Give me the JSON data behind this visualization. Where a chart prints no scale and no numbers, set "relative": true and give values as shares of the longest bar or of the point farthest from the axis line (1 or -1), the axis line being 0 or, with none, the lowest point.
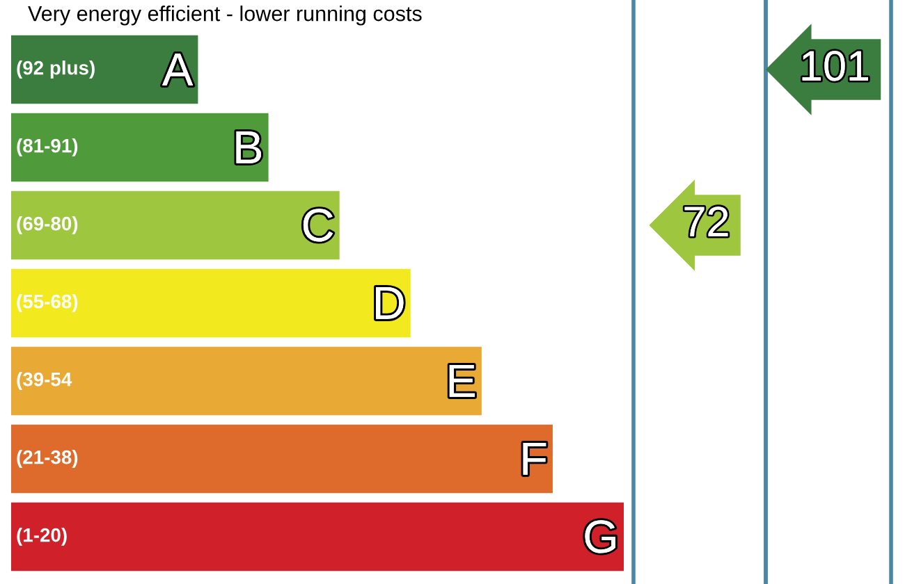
{
  "chart_data": {
    "type": "bar",
    "orientation": "horizontal",
    "relative": true,
    "title": "Very energy efficient - lower running costs",
    "categories": [
      "A",
      "B",
      "C",
      "D",
      "E",
      "F",
      "G"
    ],
    "values": [
      0.305,
      0.42,
      0.536,
      0.652,
      0.768,
      0.884,
      1
    ],
    "colors": [
      "#3b7d3e",
      "#4f9a3a",
      "#9ec63f",
      "#f2ea1f",
      "#e8a935",
      "#de6a2b",
      "#d0202a"
    ],
    "annotations": [
      "(92 plus)",
      "(81-91)",
      "(69-80)",
      "(55-68)",
      "(39-54",
      "(21-38)",
      "(1-20)",
      "72",
      "101"
    ]
  }
}
